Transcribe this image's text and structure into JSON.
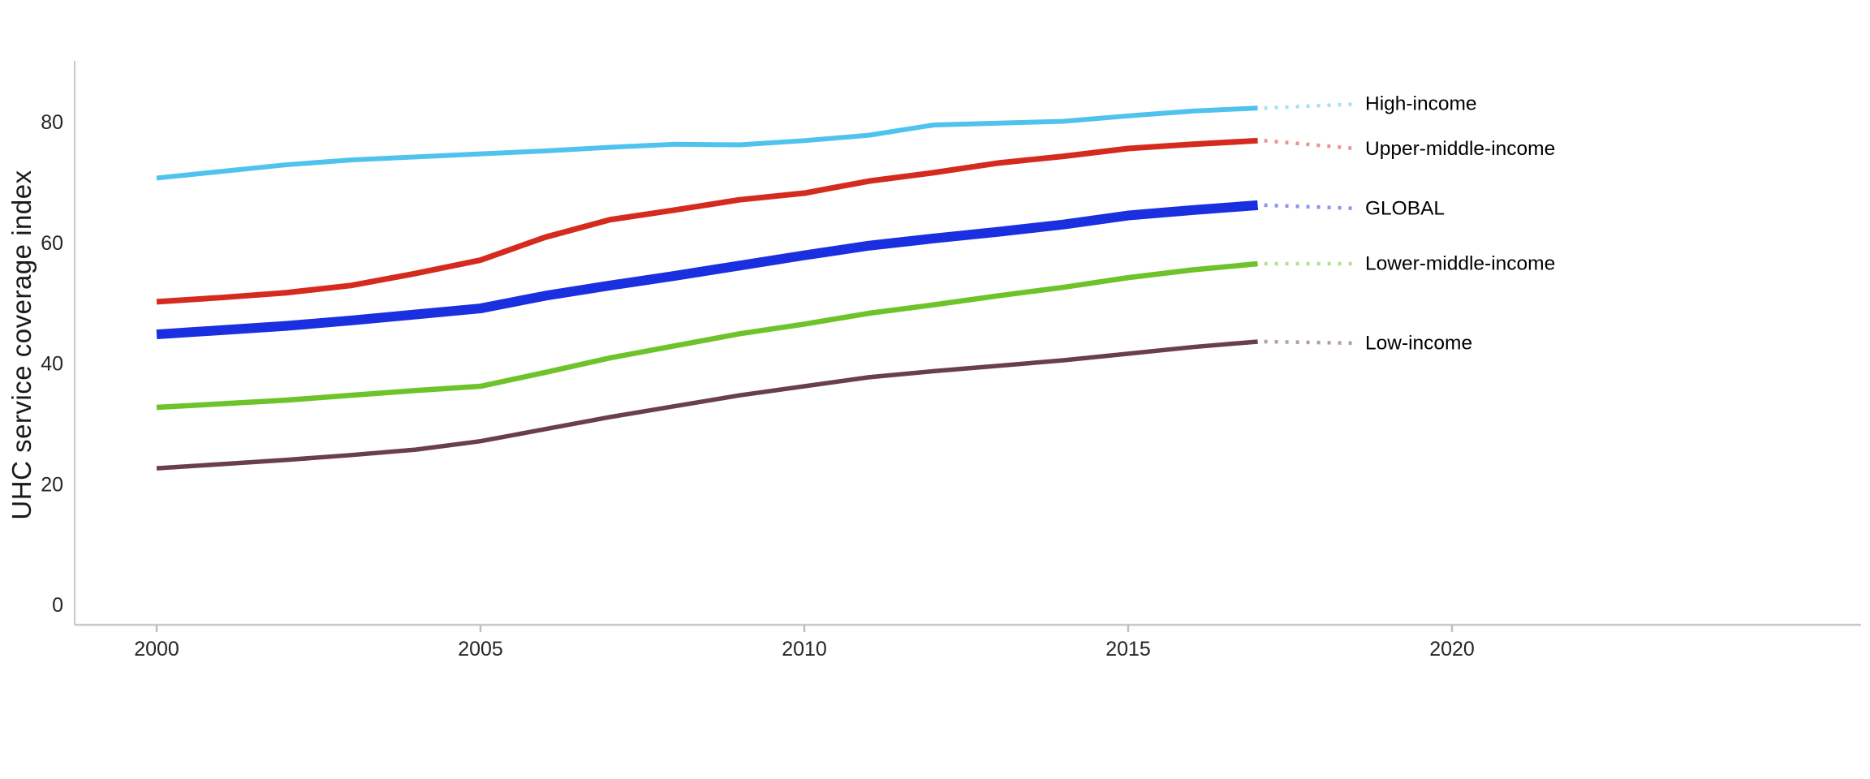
{
  "chart_data": {
    "type": "line",
    "title": "",
    "xlabel": "",
    "ylabel": "UHC service coverage index",
    "grid": false,
    "legend_position": "right-edge-labels-with-dotted-leaders",
    "x": [
      2000,
      2001,
      2002,
      2003,
      2004,
      2005,
      2006,
      2007,
      2008,
      2009,
      2010,
      2011,
      2012,
      2013,
      2014,
      2015,
      2016,
      2017
    ],
    "x_ticks": [
      "2000",
      "2005",
      "2010",
      "2015",
      "2020"
    ],
    "x_tick_values": [
      2000,
      2005,
      2010,
      2015,
      2020
    ],
    "y_ticks": [
      "0",
      "20",
      "40",
      "60",
      "80"
    ],
    "y_tick_values": [
      0,
      20,
      40,
      60,
      80
    ],
    "xlim": [
      1998.7,
      2026.3
    ],
    "ylim": [
      -3.3,
      90.2
    ],
    "axis_color": "#c9c9c9",
    "tick_color": "#bfbfbf",
    "series": [
      {
        "name": "High-income",
        "color": "#4fc3ee",
        "width": 6,
        "values": [
          70.8,
          71.9,
          73.0,
          73.8,
          74.3,
          74.8,
          75.3,
          75.9,
          76.4,
          76.3,
          77.0,
          77.9,
          79.6,
          79.9,
          80.2,
          81.1,
          81.9,
          82.4
        ],
        "label_dy": -5
      },
      {
        "name": "Upper-middle-income",
        "color": "#d52b1e",
        "width": 7,
        "values": [
          50.3,
          51.0,
          51.8,
          53.0,
          55.0,
          57.2,
          61.0,
          63.9,
          65.5,
          67.2,
          68.3,
          70.3,
          71.7,
          73.3,
          74.4,
          75.7,
          76.4,
          77.0
        ],
        "label_dy": 10
      },
      {
        "name": "GLOBAL",
        "color": "#1a2fe0",
        "width": 12,
        "values": [
          44.9,
          45.6,
          46.3,
          47.2,
          48.2,
          49.2,
          51.3,
          53.0,
          54.6,
          56.3,
          58.0,
          59.6,
          60.8,
          61.9,
          63.1,
          64.6,
          65.5,
          66.3
        ],
        "label_dy": 4
      },
      {
        "name": "Lower-middle-income",
        "color": "#6ec32b",
        "width": 6.5,
        "values": [
          32.8,
          33.4,
          34.0,
          34.8,
          35.6,
          36.3,
          38.6,
          41.0,
          43.0,
          45.0,
          46.6,
          48.4,
          49.8,
          51.3,
          52.7,
          54.3,
          55.6,
          56.6
        ],
        "label_dy": 0
      },
      {
        "name": "Low-income",
        "color": "#693f4a",
        "width": 5.5,
        "values": [
          22.7,
          23.4,
          24.1,
          24.9,
          25.8,
          27.2,
          29.2,
          31.2,
          33.0,
          34.8,
          36.3,
          37.8,
          38.8,
          39.7,
          40.6,
          41.7,
          42.8,
          43.7
        ],
        "label_dy": 2
      }
    ]
  }
}
